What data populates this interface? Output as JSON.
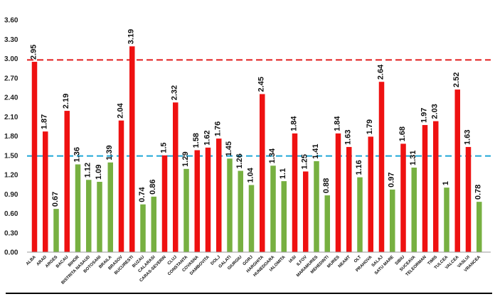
{
  "chart_data": {
    "type": "bar",
    "title": "",
    "xlabel": "",
    "ylabel": "",
    "ylim": [
      0,
      3.6
    ],
    "yticks": [
      "0.00",
      "0.30",
      "0.60",
      "0.90",
      "1.20",
      "1.50",
      "1.80",
      "2.10",
      "2.40",
      "2.70",
      "3.00",
      "3.30",
      "3.60"
    ],
    "grid": false,
    "legend": "none",
    "categories": [
      "ALBA",
      "ARAD",
      "ARGES",
      "BACAU",
      "BIHOR",
      "BISTRITA NASAUD",
      "BOTOSANI",
      "BRAILA",
      "BRASOV",
      "BUCURESTI",
      "BUZAU",
      "CALARASI",
      "CARAS-SEVERIN",
      "CLUJ",
      "CONSTANTA",
      "COVASNA",
      "DAMBOVITA",
      "DOLJ",
      "GALATI",
      "GIURGIU",
      "GORJ",
      "HARGHITA",
      "HUNEDOARA",
      "IALOMITA",
      "IASI",
      "ILFOV",
      "MARAMURES",
      "MEHEDINTI",
      "MURES",
      "NEAMT",
      "OLT",
      "PRAHOVA",
      "SALAJ",
      "SATU MARE",
      "SIBIU",
      "SUCEAVA",
      "TELEORMAN",
      "TIMIS",
      "TULCEA",
      "VALCEA",
      "VASLUI",
      "VRANCEA"
    ],
    "values": [
      2.95,
      1.87,
      0.67,
      2.19,
      1.36,
      1.12,
      1.09,
      1.39,
      2.04,
      3.19,
      0.74,
      0.86,
      1.5,
      2.32,
      1.29,
      1.58,
      1.62,
      1.76,
      1.45,
      1.26,
      1.04,
      2.45,
      1.34,
      1.1,
      1.84,
      1.25,
      1.41,
      0.88,
      1.84,
      1.63,
      1.16,
      1.79,
      2.64,
      0.97,
      1.68,
      1.31,
      1.97,
      2.03,
      1,
      2.52,
      1.63,
      0.78
    ],
    "value_labels": [
      "2.95",
      "1.87",
      "0.67",
      "2.19",
      "1.36",
      "1.12",
      "1.09",
      "1.39",
      "2.04",
      "3.19",
      "0.74",
      "0.86",
      "1.5",
      "2.32",
      "1.29",
      "1.58",
      "1.62",
      "1.76",
      "1.45",
      "1.26",
      "1.04",
      "2.45",
      "1.34",
      "1.1",
      "1.84",
      "1.25",
      "1.41",
      "0.88",
      "1.84",
      "1.63",
      "1.16",
      "1.79",
      "2.64",
      "0.97",
      "1.68",
      "1.31",
      "1.97",
      "2.03",
      "1",
      "2.52",
      "1.63",
      "0.78"
    ],
    "bar_colors": [
      "red",
      "red",
      "green",
      "red",
      "green",
      "green",
      "green",
      "green",
      "red",
      "red",
      "green",
      "green",
      "red",
      "red",
      "green",
      "red",
      "red",
      "red",
      "green",
      "green",
      "green",
      "red",
      "green",
      "green",
      "red",
      "red",
      "green",
      "green",
      "red",
      "red",
      "green",
      "red",
      "red",
      "green",
      "red",
      "green",
      "red",
      "red",
      "green",
      "red",
      "red",
      "green"
    ],
    "reference_lines": [
      {
        "value": 2.98,
        "color": "#e31c1c",
        "style": "dashed"
      },
      {
        "value": 1.49,
        "color": "#1ea6d6",
        "style": "dashed"
      }
    ],
    "colors": {
      "red": "#ee1111",
      "green": "#77b041",
      "axis": "#000000"
    }
  }
}
